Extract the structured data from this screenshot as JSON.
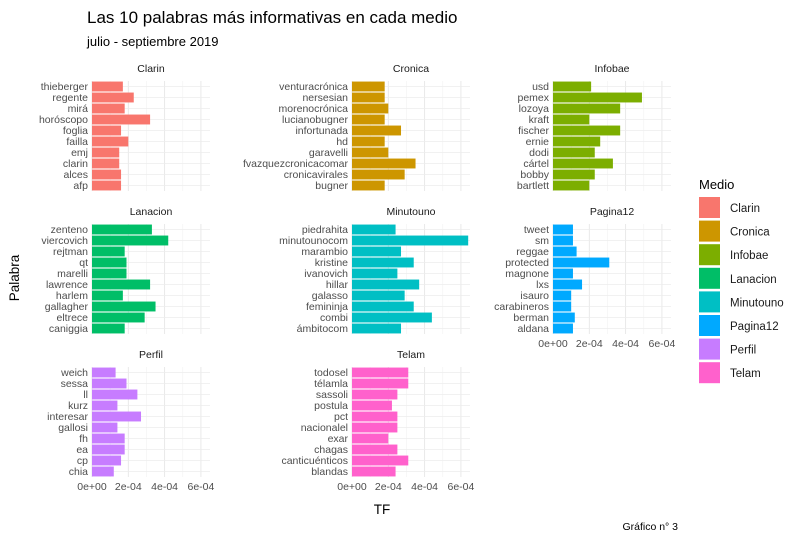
{
  "chart_data": {
    "type": "bar",
    "orientation": "horizontal",
    "title": "Las 10 palabras más informativas en cada medio",
    "subtitle": "julio - septiembre 2019",
    "xlabel": "TF",
    "ylabel": "Palabra",
    "caption": "Gráfico n° 3",
    "xlim": [
      0,
      0.00065
    ],
    "x_ticks": [
      0,
      0.0002,
      0.0004,
      0.0006
    ],
    "x_tick_labels": [
      "0e+00",
      "2e-04",
      "4e-04",
      "6e-04"
    ],
    "grid": true,
    "legend": {
      "title": "Medio",
      "placement": "right",
      "entries": [
        "Clarin",
        "Cronica",
        "Infobae",
        "Lanacion",
        "Minutouno",
        "Pagina12",
        "Perfil",
        "Telam"
      ]
    },
    "colors": {
      "Clarin": "#F8766D",
      "Cronica": "#CD9600",
      "Infobae": "#7CAE00",
      "Lanacion": "#00BE67",
      "Minutouno": "#00BFC4",
      "Pagina12": "#00A9FF",
      "Perfil": "#C77CFF",
      "Telam": "#FF61CC"
    },
    "facets": [
      {
        "name": "Clarin",
        "words": [
          "thieberger",
          "regente",
          "mirá",
          "horóscopo",
          "foglia",
          "failla",
          "emj",
          "clarin",
          "alces",
          "afp"
        ],
        "values": [
          0.00017,
          0.00023,
          0.00018,
          0.00032,
          0.00016,
          0.0002,
          0.00015,
          0.00015,
          0.00016,
          0.00016
        ]
      },
      {
        "name": "Cronica",
        "words": [
          "venturacrónica",
          "nersesian",
          "morenocrónica",
          "lucianobugner",
          "infortunada",
          "hd",
          "garavelli",
          "fvazquezcronicacomar",
          "cronicavirales",
          "bugner"
        ],
        "values": [
          0.00018,
          0.00018,
          0.0002,
          0.00018,
          0.00027,
          0.00018,
          0.0002,
          0.00035,
          0.00029,
          0.00018
        ]
      },
      {
        "name": "Infobae",
        "words": [
          "usd",
          "pemex",
          "lozoya",
          "kraft",
          "fischer",
          "ernie",
          "dodi",
          "cártel",
          "bobby",
          "bartlett"
        ],
        "values": [
          0.00021,
          0.00049,
          0.00037,
          0.0002,
          0.00037,
          0.00026,
          0.00023,
          0.00033,
          0.00023,
          0.0002
        ]
      },
      {
        "name": "Lanacion",
        "words": [
          "zenteno",
          "viercovich",
          "rejtman",
          "qt",
          "marelli",
          "lawrence",
          "harlem",
          "gallagher",
          "eltrece",
          "caniggia"
        ],
        "values": [
          0.00033,
          0.00042,
          0.00018,
          0.00019,
          0.00019,
          0.00032,
          0.00017,
          0.00035,
          0.00029,
          0.00018
        ]
      },
      {
        "name": "Minutouno",
        "words": [
          "piedrahita",
          "minutounocom",
          "marambio",
          "kristine",
          "ivanovich",
          "hillar",
          "galasso",
          "femininja",
          "combi",
          "ámbitocom"
        ],
        "values": [
          0.00024,
          0.00064,
          0.00027,
          0.00034,
          0.00025,
          0.00037,
          0.00029,
          0.00034,
          0.00044,
          0.00027
        ]
      },
      {
        "name": "Pagina12",
        "words": [
          "tweet",
          "sm",
          "reggae",
          "protected",
          "magnone",
          "lxs",
          "isauro",
          "carabineros",
          "berman",
          "aldana"
        ],
        "values": [
          0.00011,
          0.00011,
          0.00013,
          0.00031,
          0.00011,
          0.00016,
          0.0001,
          0.0001,
          0.00012,
          0.00011
        ]
      },
      {
        "name": "Perfil",
        "words": [
          "weich",
          "sessa",
          "ll",
          "kurz",
          "interesar",
          "gallosi",
          "fh",
          "ea",
          "cp",
          "chia"
        ],
        "values": [
          0.00013,
          0.00019,
          0.00025,
          0.00014,
          0.00027,
          0.00014,
          0.00018,
          0.00018,
          0.00016,
          0.00012
        ]
      },
      {
        "name": "Telam",
        "words": [
          "todosel",
          "télamla",
          "sassoli",
          "postula",
          "pct",
          "nacionalel",
          "exar",
          "chagas",
          "canticuénticos",
          "blandas"
        ],
        "values": [
          0.00031,
          0.00031,
          0.00025,
          0.00022,
          0.00025,
          0.00025,
          0.0002,
          0.00025,
          0.00031,
          0.00024
        ]
      }
    ]
  }
}
